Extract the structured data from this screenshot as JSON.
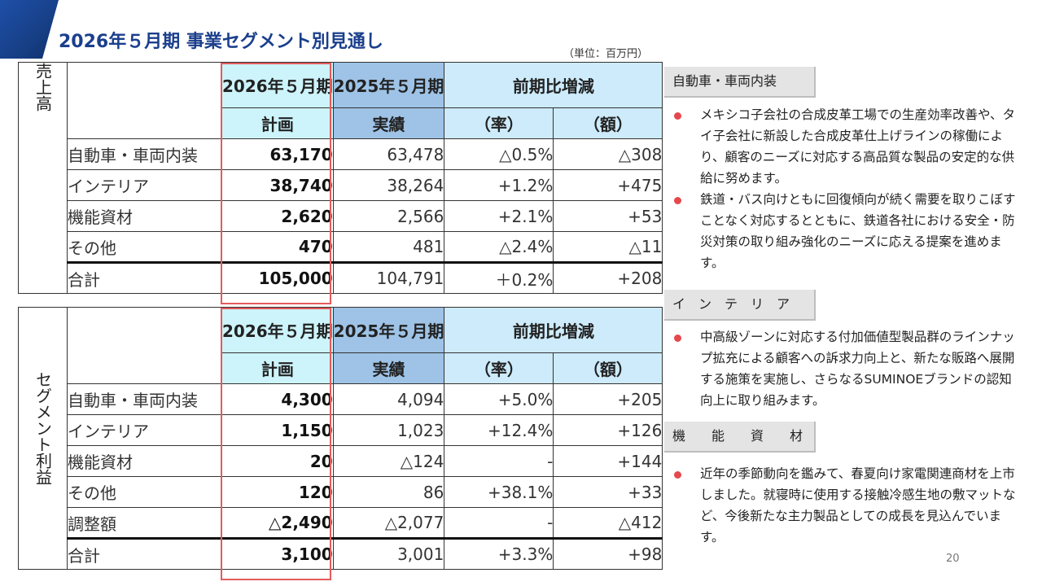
{
  "title": "2026年５月期 事業セグメント別見通し",
  "unit": "（単位：百万円）",
  "sales": {
    "side_label": "売上高",
    "headers": {
      "plan_year": "2026年５月期",
      "actual_year": "2025年５月期",
      "compare": "前期比増減",
      "plan": "計画",
      "actual": "実績",
      "rate": "（率）",
      "amount": "（額）"
    },
    "rows": [
      {
        "label": "自動車・車両内装",
        "plan": "63,170",
        "actual": "63,478",
        "rate": "△0.5%",
        "amount": "△308"
      },
      {
        "label": "インテリア",
        "plan": "38,740",
        "actual": "38,264",
        "rate": "+1.2%",
        "amount": "+475"
      },
      {
        "label": "機能資材",
        "plan": "2,620",
        "actual": "2,566",
        "rate": "+2.1%",
        "amount": "+53"
      },
      {
        "label": "その他",
        "plan": "470",
        "actual": "481",
        "rate": "△2.4%",
        "amount": "△11"
      },
      {
        "label": "合計",
        "plan": "105,000",
        "actual": "104,791",
        "rate": "＋0.2%",
        "amount": "+208"
      }
    ]
  },
  "profit": {
    "side_label": "セグメント利益",
    "headers": {
      "plan_year": "2026年５月期",
      "actual_year": "2025年５月期",
      "compare": "前期比増減",
      "plan": "計画",
      "actual": "実績",
      "rate": "（率）",
      "amount": "（額）"
    },
    "rows": [
      {
        "label": "自動車・車両内装",
        "plan": "4,300",
        "actual": "4,094",
        "rate": "+5.0%",
        "amount": "+205"
      },
      {
        "label": "インテリア",
        "plan": "1,150",
        "actual": "1,023",
        "rate": "+12.4%",
        "amount": "+126"
      },
      {
        "label": "機能資材",
        "plan": "20",
        "actual": "△124",
        "rate": "-",
        "amount": "+144"
      },
      {
        "label": "その他",
        "plan": "120",
        "actual": "86",
        "rate": "+38.1%",
        "amount": "+33"
      },
      {
        "label": "調整額",
        "plan": "△2,490",
        "actual": "△2,077",
        "rate": "-",
        "amount": "△412"
      },
      {
        "label": "合計",
        "plan": "3,100",
        "actual": "3,001",
        "rate": "+3.3%",
        "amount": "+98"
      }
    ]
  },
  "panels": {
    "auto": {
      "heading": "自動車・車両内装",
      "bullets": [
        "メキシコ子会社の合成皮革工場での生産効率改善や、タイ子会社に新設した合成皮革仕上げラインの稼働により、顧客のニーズに対応する高品質な製品の安定的な供給に努めます。",
        "鉄道・バス向けともに回復傾向が続く需要を取りこぼすことなく対応するとともに、鉄道各社における安全・防災対策の取り組み強化のニーズに応える提案を進めます。"
      ]
    },
    "interior": {
      "heading": "イ　ン　テ　リ　ア",
      "bullets": [
        "中高級ゾーンに対応する付加価値型製品群のラインナップ拡充による顧客への訴求力向上と、新たな販路へ展開する施策を実施し、さらなるSUMINOEブランドの認知向上に取り組みます。"
      ]
    },
    "functional": {
      "heading": "機　　能　　資　　材",
      "bullets": [
        "近年の季節動向を鑑みて、春夏向け家電関連商材を上市しました。就寝時に使用する接触冷感生地の敷マットなど、今後新たな主力製品としての成長を見込んでいます。"
      ]
    }
  },
  "page_number": "20"
}
